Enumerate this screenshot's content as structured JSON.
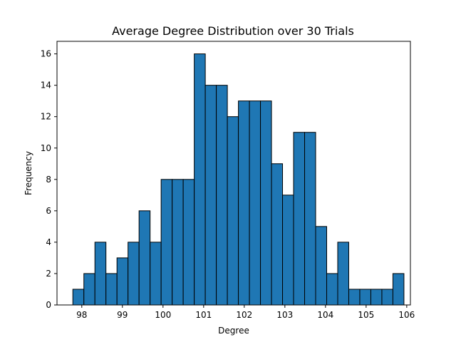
{
  "chart_data": {
    "type": "bar",
    "title": "Average Degree Distribution over 30 Trials",
    "xlabel": "Degree",
    "ylabel": "Frequency",
    "bin_start": 97.78,
    "bin_width": 0.2717,
    "values": [
      1,
      2,
      4,
      2,
      3,
      4,
      6,
      4,
      8,
      8,
      8,
      16,
      14,
      14,
      12,
      13,
      13,
      13,
      9,
      7,
      11,
      11,
      5,
      2,
      4,
      1,
      1,
      1,
      1,
      2
    ],
    "xlim": [
      97.39,
      106.09
    ],
    "ylim": [
      0,
      16.8
    ],
    "xticks": [
      98,
      99,
      100,
      101,
      102,
      103,
      104,
      105,
      106
    ],
    "xtick_labels": [
      "98",
      "99",
      "100",
      "101",
      "102",
      "103",
      "104",
      "105",
      "106"
    ],
    "yticks": [
      0,
      2,
      4,
      6,
      8,
      10,
      12,
      14,
      16
    ],
    "ytick_labels": [
      "0",
      "2",
      "4",
      "6",
      "8",
      "10",
      "12",
      "14",
      "16"
    ],
    "grid": false,
    "bar_color": "#1f77b4",
    "edge_color": "#000000"
  }
}
